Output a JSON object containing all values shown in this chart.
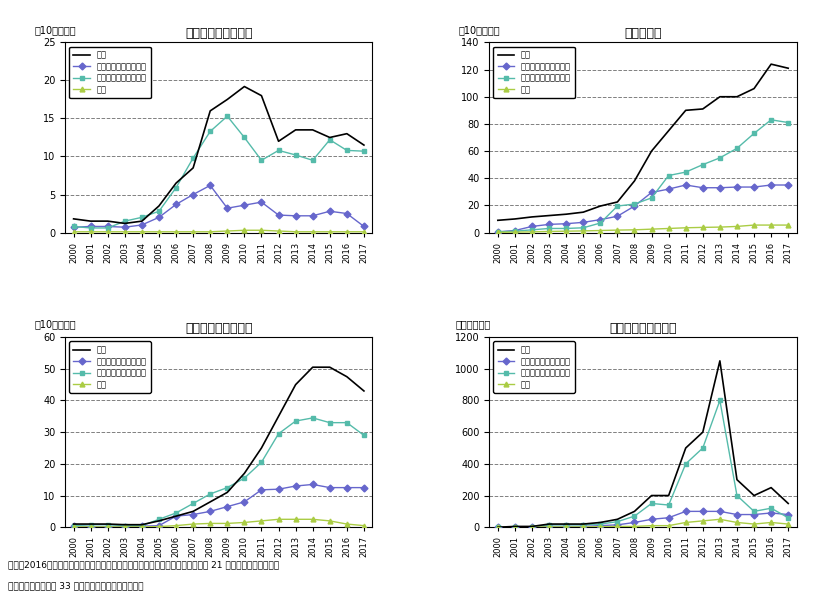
{
  "years": [
    2000,
    2001,
    2002,
    2003,
    2004,
    2005,
    2006,
    2007,
    2008,
    2009,
    2010,
    2011,
    2012,
    2013,
    2014,
    2015,
    2016,
    2017
  ],
  "long_term_total": [
    1.8,
    1.5,
    1.5,
    1.2,
    1.5,
    3.5,
    6.5,
    8.5,
    16.0,
    17.5,
    19.2,
    18.0,
    12.0,
    13.5,
    13.5,
    12.5,
    13.0,
    11.5
  ],
  "long_term_central": [
    0.7,
    0.8,
    0.8,
    0.7,
    1.0,
    2.0,
    3.7,
    5.0,
    6.2,
    3.2,
    3.6,
    4.0,
    2.3,
    2.2,
    2.2,
    2.8,
    2.5,
    0.8
  ],
  "long_term_local": [
    0.8,
    0.6,
    0.6,
    1.5,
    2.0,
    2.8,
    5.9,
    9.8,
    13.3,
    15.3,
    12.5,
    9.5,
    10.8,
    10.2,
    9.5,
    12.2,
    10.8,
    10.7
  ],
  "long_term_private": [
    0.1,
    0.1,
    0.1,
    0.1,
    0.1,
    0.1,
    0.1,
    0.1,
    0.1,
    0.2,
    0.3,
    0.3,
    0.2,
    0.1,
    0.1,
    0.1,
    0.1,
    0.1
  ],
  "fixed_total": [
    9.0,
    10.0,
    11.5,
    12.5,
    13.5,
    15.0,
    19.5,
    22.5,
    38.0,
    60.0,
    75.0,
    90.0,
    91.0,
    100.0,
    100.0,
    106.0,
    124.0,
    121.0
  ],
  "fixed_central": [
    0.5,
    1.5,
    4.5,
    6.0,
    6.5,
    7.5,
    9.5,
    12.0,
    19.5,
    29.5,
    32.0,
    35.0,
    33.0,
    33.0,
    33.5,
    33.5,
    35.0,
    35.0
  ],
  "fixed_local": [
    0.5,
    1.0,
    2.0,
    3.0,
    3.0,
    3.5,
    7.0,
    19.5,
    21.0,
    25.5,
    42.0,
    44.5,
    50.0,
    55.0,
    62.0,
    73.0,
    83.0,
    81.0
  ],
  "fixed_private": [
    0.2,
    0.3,
    0.5,
    0.8,
    1.0,
    1.2,
    1.5,
    1.8,
    2.0,
    2.5,
    3.0,
    3.5,
    3.8,
    4.0,
    4.5,
    5.5,
    5.5,
    5.5
  ],
  "short_term_total": [
    1.0,
    1.0,
    1.0,
    0.8,
    0.8,
    2.0,
    3.5,
    5.0,
    8.0,
    11.0,
    17.0,
    25.0,
    35.0,
    45.0,
    50.5,
    50.5,
    47.5,
    43.0
  ],
  "short_term_central": [
    0.5,
    0.2,
    0.2,
    0.2,
    0.3,
    0.5,
    3.5,
    4.0,
    5.0,
    6.5,
    8.0,
    11.8,
    12.0,
    13.0,
    13.5,
    12.5,
    12.5,
    12.5
  ],
  "short_term_local": [
    0.5,
    0.8,
    0.8,
    0.5,
    0.5,
    2.5,
    4.5,
    7.5,
    10.5,
    12.5,
    15.5,
    20.5,
    29.5,
    33.5,
    34.5,
    33.0,
    33.0,
    29.0
  ],
  "short_term_private": [
    0.1,
    0.1,
    0.1,
    0.1,
    0.1,
    0.2,
    0.5,
    1.0,
    1.2,
    1.2,
    1.5,
    2.0,
    2.5,
    2.5,
    2.5,
    2.0,
    1.0,
    0.5
  ],
  "subsidy_total": [
    0,
    5,
    5,
    20,
    20,
    20,
    30,
    50,
    100,
    200,
    200,
    500,
    600,
    1050,
    300,
    200,
    250,
    150
  ],
  "subsidy_central": [
    0,
    2,
    2,
    5,
    5,
    5,
    10,
    15,
    30,
    50,
    60,
    100,
    100,
    100,
    80,
    80,
    90,
    80
  ],
  "subsidy_local": [
    0,
    3,
    3,
    15,
    15,
    15,
    20,
    35,
    70,
    150,
    140,
    400,
    500,
    800,
    200,
    100,
    120,
    60
  ],
  "subsidy_private": [
    0,
    1,
    1,
    2,
    2,
    2,
    3,
    5,
    5,
    10,
    10,
    30,
    40,
    50,
    30,
    20,
    30,
    20
  ],
  "color_total": "#000000",
  "color_central": "#6666cc",
  "color_local": "#55bbaa",
  "color_private": "#aacc44",
  "title_long": "長期借入金（残高）",
  "title_fixed": "固定資産額",
  "title_short": "短期借入金（残高）",
  "title_subsidy": "政府補助額（単年）",
  "ylabel_billion": "（10億ドル）",
  "ylabel_million": "（百万ドル）",
  "legend_total": "総計",
  "legend_central": "国有（中央政府所管）",
  "legend_local": "国有（地方政府所管）",
  "legend_private": "民営",
  "note": "備考：2016年末時点で中央政府所管国有企業は５社。地方政府所管国有企業は 21 社。民営企業は７社。",
  "source": "資料：中国鉄鬼上場 33 社「年度報告書」より作成。"
}
